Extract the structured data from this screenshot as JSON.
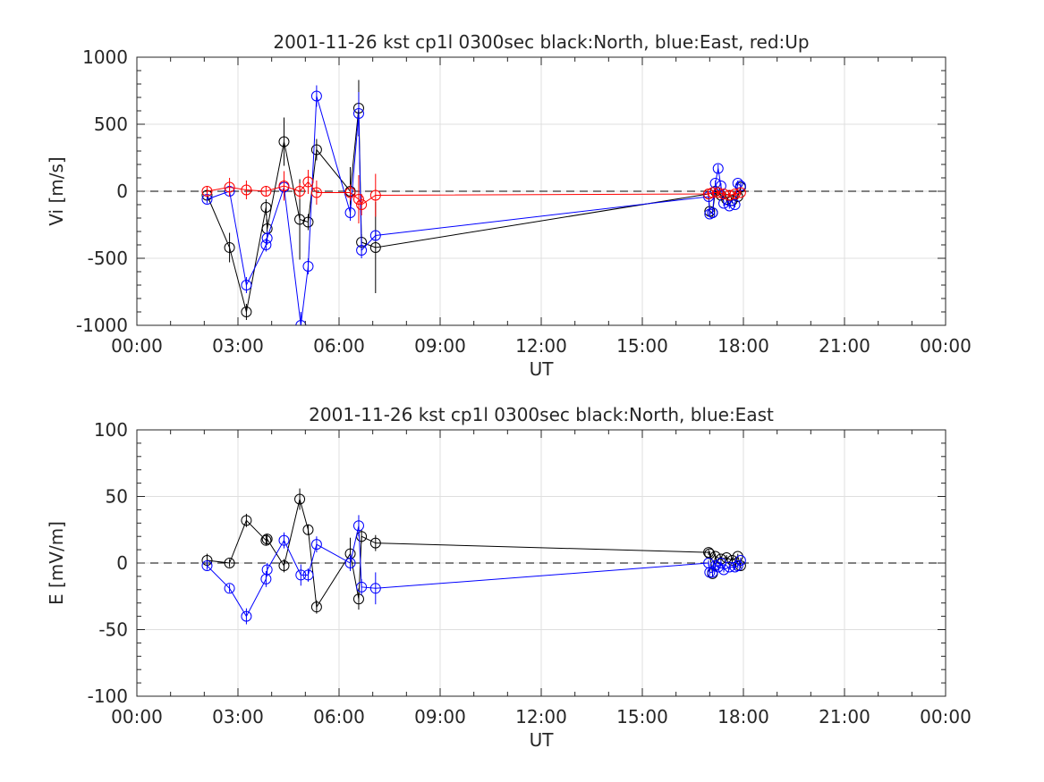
{
  "chart_data": [
    {
      "type": "scatter",
      "title": "2001-11-26 kst cp1l 0300sec black:North, blue:East, red:Up",
      "xlabel": "UT",
      "ylabel": "Vi [m/s]",
      "xlim": [
        "00:00",
        "24:00"
      ],
      "ylim": [
        -1000,
        1000
      ],
      "yticks": [
        -1000,
        -500,
        0,
        500,
        1000
      ],
      "xtick_labels": [
        "00:00",
        "03:00",
        "06:00",
        "09:00",
        "12:00",
        "15:00",
        "18:00",
        "21:00",
        "00:00"
      ],
      "grid": true,
      "series": [
        {
          "color": "#000000",
          "x": [
            "02:05",
            "02:45",
            "03:15",
            "03:50",
            "03:52",
            "04:22",
            "04:50",
            "05:05",
            "05:20",
            "06:20",
            "06:35",
            "06:40",
            "07:05",
            "16:58",
            "17:00",
            "17:05",
            "17:10",
            "17:20",
            "17:30",
            "17:40",
            "17:50",
            "17:55"
          ],
          "y": [
            -30,
            -420,
            -900,
            -120,
            -280,
            370,
            -210,
            -230,
            310,
            0,
            620,
            -380,
            -420,
            -20,
            -150,
            -160,
            0,
            -30,
            -60,
            -70,
            -40,
            30
          ],
          "err": [
            40,
            110,
            60,
            60,
            70,
            180,
            300,
            60,
            80,
            180,
            210,
            60,
            340,
            20,
            30,
            30,
            20,
            20,
            20,
            20,
            20,
            20
          ]
        },
        {
          "color": "#0000ff",
          "x": [
            "02:05",
            "02:45",
            "03:15",
            "03:50",
            "03:52",
            "04:22",
            "04:52",
            "05:05",
            "05:20",
            "06:20",
            "06:35",
            "06:40",
            "07:05",
            "16:58",
            "17:00",
            "17:05",
            "17:10",
            "17:15",
            "17:20",
            "17:25",
            "17:35",
            "17:45",
            "17:50",
            "17:55"
          ],
          "y": [
            -60,
            0,
            -700,
            -400,
            -350,
            30,
            -1000,
            -560,
            710,
            -160,
            580,
            -440,
            -330,
            -40,
            -170,
            -160,
            60,
            170,
            40,
            -90,
            -110,
            -100,
            60,
            40
          ],
          "err": [
            30,
            40,
            60,
            50,
            50,
            60,
            100,
            60,
            80,
            60,
            160,
            60,
            40,
            20,
            20,
            20,
            20,
            30,
            20,
            20,
            20,
            20,
            20,
            20
          ]
        },
        {
          "color": "#ff0000",
          "x": [
            "02:05",
            "02:45",
            "03:15",
            "03:50",
            "04:22",
            "04:50",
            "05:05",
            "05:20",
            "06:20",
            "06:35",
            "06:40",
            "07:05",
            "16:58",
            "17:05",
            "17:15",
            "17:25",
            "17:35",
            "17:45",
            "17:55"
          ],
          "y": [
            0,
            30,
            10,
            0,
            40,
            0,
            70,
            -10,
            -10,
            -60,
            -100,
            -30,
            -20,
            -10,
            -10,
            -20,
            -30,
            -20,
            -10
          ],
          "err": [
            40,
            70,
            70,
            40,
            110,
            60,
            90,
            90,
            60,
            180,
            80,
            160,
            20,
            20,
            20,
            20,
            20,
            20,
            20
          ]
        }
      ]
    },
    {
      "type": "scatter",
      "title": "2001-11-26 kst cp1l 0300sec black:North, blue:East",
      "xlabel": "UT",
      "ylabel": "E [mV/m]",
      "xlim": [
        "00:00",
        "24:00"
      ],
      "ylim": [
        -100,
        100
      ],
      "yticks": [
        -100,
        -50,
        0,
        50,
        100
      ],
      "xtick_labels": [
        "00:00",
        "03:00",
        "06:00",
        "09:00",
        "12:00",
        "15:00",
        "18:00",
        "21:00",
        "00:00"
      ],
      "grid": true,
      "series": [
        {
          "color": "#000000",
          "x": [
            "02:05",
            "02:45",
            "03:15",
            "03:50",
            "03:52",
            "04:22",
            "04:50",
            "05:05",
            "05:20",
            "06:20",
            "06:35",
            "06:40",
            "07:05",
            "16:58",
            "17:00",
            "17:05",
            "17:10",
            "17:20",
            "17:30",
            "17:40",
            "17:50",
            "17:55"
          ],
          "y": [
            2,
            0,
            32,
            17,
            18,
            -2,
            48,
            25,
            -33,
            7,
            -27,
            20,
            15,
            8,
            7,
            -8,
            5,
            3,
            4,
            2,
            5,
            -2
          ],
          "err": [
            5,
            3,
            5,
            4,
            4,
            5,
            8,
            4,
            5,
            12,
            8,
            5,
            6,
            2,
            2,
            2,
            2,
            2,
            2,
            2,
            2,
            2
          ]
        },
        {
          "color": "#0000ff",
          "x": [
            "02:05",
            "02:45",
            "03:15",
            "03:50",
            "03:52",
            "04:22",
            "04:52",
            "05:05",
            "05:20",
            "06:20",
            "06:35",
            "06:40",
            "07:05",
            "16:58",
            "17:00",
            "17:05",
            "17:10",
            "17:15",
            "17:20",
            "17:25",
            "17:35",
            "17:45",
            "17:50",
            "17:55"
          ],
          "y": [
            -2,
            -19,
            -40,
            -12,
            -5,
            17,
            -9,
            -9,
            14,
            0,
            28,
            -18,
            -19,
            0,
            -7,
            -7,
            -2,
            -3,
            0,
            -5,
            -3,
            -3,
            -2,
            2
          ],
          "err": [
            3,
            3,
            6,
            6,
            5,
            6,
            8,
            5,
            6,
            6,
            8,
            6,
            12,
            2,
            2,
            2,
            2,
            2,
            2,
            2,
            2,
            2,
            2,
            2
          ]
        }
      ]
    }
  ]
}
